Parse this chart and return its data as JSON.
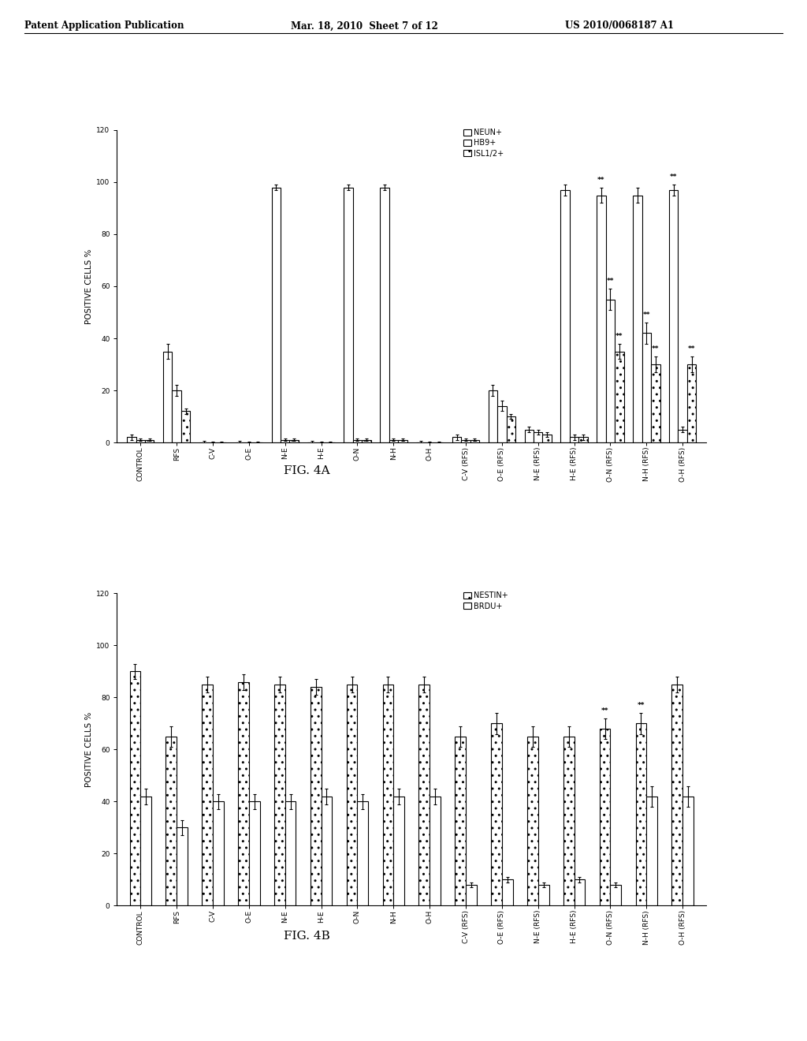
{
  "header_left": "Patent Application Publication",
  "header_mid": "Mar. 18, 2010  Sheet 7 of 12",
  "header_right": "US 2010/0068187 A1",
  "fig4a": {
    "title": "FIG. 4A",
    "ylabel": "POSITIVE CELLS %",
    "ylim": [
      0,
      120
    ],
    "yticks": [
      0,
      20,
      40,
      60,
      80,
      100,
      120
    ],
    "categories": [
      "CONTROL",
      "RFS",
      "C-V",
      "O-E",
      "N-E",
      "H-E",
      "O-N",
      "N-H",
      "O-H",
      "C-V (RFS)",
      "O-E (RFS)",
      "N-E (RFS)",
      "H-E (RFS)",
      "O-N (RFS)",
      "N-H (RFS)",
      "O-H (RFS)"
    ],
    "neun": [
      2,
      35,
      0,
      0,
      98,
      0,
      98,
      98,
      0,
      2,
      20,
      5,
      97,
      95,
      95,
      97
    ],
    "hb9": [
      1,
      20,
      0,
      0,
      1,
      0,
      1,
      1,
      0,
      1,
      14,
      4,
      2,
      55,
      42,
      5
    ],
    "isl12": [
      1,
      12,
      0,
      0,
      1,
      0,
      1,
      1,
      0,
      1,
      10,
      3,
      2,
      35,
      30,
      30
    ],
    "neun_err": [
      1,
      3,
      0.5,
      0.5,
      1,
      0.5,
      1,
      1,
      0.5,
      1,
      2,
      1,
      2,
      3,
      3,
      2
    ],
    "hb9_err": [
      0.5,
      2,
      0.2,
      0.2,
      0.5,
      0.2,
      0.5,
      0.5,
      0.2,
      0.5,
      2,
      1,
      1,
      4,
      4,
      1
    ],
    "isl12_err": [
      0.5,
      1,
      0.2,
      0.2,
      0.5,
      0.2,
      0.5,
      0.5,
      0.2,
      0.5,
      1,
      1,
      1,
      3,
      3,
      3
    ],
    "legend": [
      "NEUN+",
      "HB9+",
      "ISL1/2+"
    ],
    "bar_colors": [
      "white",
      "white",
      "white"
    ],
    "hatches": [
      "",
      "",
      ".."
    ],
    "significant_neun": [
      13,
      15
    ],
    "significant_hb9": [
      13,
      14
    ],
    "significant_isl12": [
      13,
      14,
      15
    ]
  },
  "fig4b": {
    "title": "FIG. 4B",
    "ylabel": "POSITIVE CELLS %",
    "ylim": [
      0,
      120
    ],
    "yticks": [
      0,
      20,
      40,
      60,
      80,
      100,
      120
    ],
    "categories": [
      "CONTROL",
      "RFS",
      "C-V",
      "O-E",
      "N-E",
      "H-E",
      "O-N",
      "N-H",
      "O-H",
      "C-V (RFS)",
      "O-E (RFS)",
      "N-E (RFS)",
      "H-E (RFS)",
      "O-N (RFS)",
      "N-H (RFS)",
      "O-H (RFS)"
    ],
    "nestin": [
      90,
      65,
      85,
      86,
      85,
      84,
      85,
      85,
      85,
      65,
      70,
      65,
      65,
      68,
      70,
      85
    ],
    "brdu": [
      42,
      30,
      40,
      40,
      40,
      42,
      40,
      42,
      42,
      8,
      10,
      8,
      10,
      8,
      42,
      42
    ],
    "nestin_err": [
      3,
      4,
      3,
      3,
      3,
      3,
      3,
      3,
      3,
      4,
      4,
      4,
      4,
      4,
      4,
      3
    ],
    "brdu_err": [
      3,
      3,
      3,
      3,
      3,
      3,
      3,
      3,
      3,
      1,
      1,
      1,
      1,
      1,
      4,
      4
    ],
    "legend": [
      "NESTIN+",
      "BRDU+"
    ],
    "bar_colors": [
      "white",
      "white"
    ],
    "hatches": [
      "..",
      ""
    ],
    "significant_nestin": [
      13,
      14
    ],
    "significant_brdu": []
  },
  "background": "#ffffff",
  "text_color": "#000000",
  "bar_edgecolor": "#000000"
}
